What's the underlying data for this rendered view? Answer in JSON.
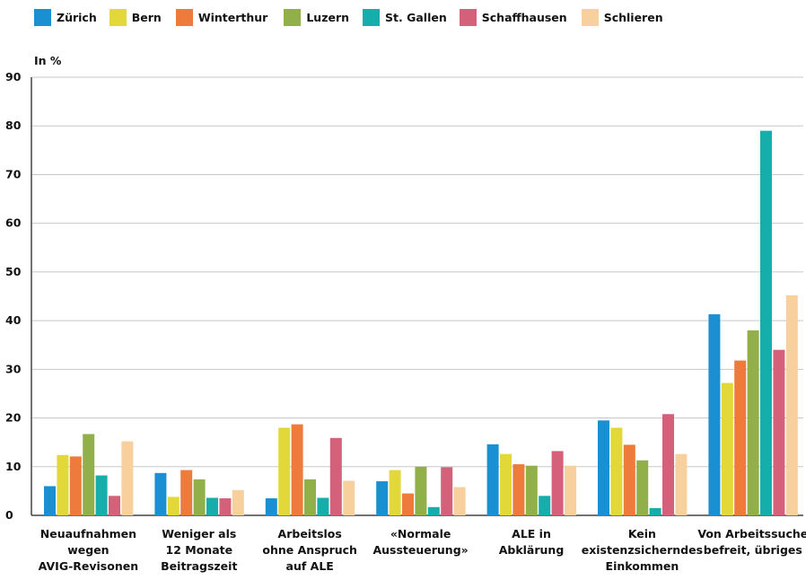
{
  "chart_data": {
    "type": "bar",
    "ylabel": "In %",
    "ylim": [
      0,
      90
    ],
    "yticks": [
      0,
      10,
      20,
      30,
      40,
      50,
      60,
      70,
      80,
      90
    ],
    "grid": true,
    "legend_position": "top-left",
    "categories": [
      [
        "Neuaufnahmen",
        "wegen",
        "AVIG-Revisonen"
      ],
      [
        "Weniger als",
        "12 Monate",
        "Beitragszeit"
      ],
      [
        "Arbeitslos",
        "ohne Anspruch",
        "auf ALE"
      ],
      [
        "«Normale",
        "Aussteuerung»"
      ],
      [
        "ALE in",
        "Abklärung"
      ],
      [
        "Kein",
        "existenzsicherndes",
        "Einkommen"
      ],
      [
        "Von Arbeitssuche",
        "befreit, übriges"
      ]
    ],
    "series": [
      {
        "name": "Zürich",
        "color": "#1a8fd1",
        "values": [
          6,
          8.7,
          3.5,
          7,
          14.6,
          19.5,
          41.3
        ]
      },
      {
        "name": "Bern",
        "color": "#e3d83a",
        "values": [
          12.4,
          3.8,
          18,
          9.3,
          12.6,
          18,
          27.2
        ]
      },
      {
        "name": "Winterthur",
        "color": "#ee7a3b",
        "values": [
          12.1,
          9.3,
          18.7,
          4.5,
          10.5,
          14.5,
          31.8
        ]
      },
      {
        "name": "Luzern",
        "color": "#92b04a",
        "values": [
          16.7,
          7.4,
          7.4,
          10,
          10.2,
          11.3,
          38
        ]
      },
      {
        "name": "St. Gallen",
        "color": "#15aeaa",
        "values": [
          8.2,
          3.6,
          3.6,
          1.7,
          4,
          1.5,
          79
        ]
      },
      {
        "name": "Schaffhausen",
        "color": "#d5607a",
        "values": [
          4,
          3.5,
          15.9,
          9.9,
          13.2,
          20.8,
          34
        ]
      },
      {
        "name": "Schlieren",
        "color": "#f7d09d",
        "values": [
          15.2,
          5.2,
          7.1,
          5.8,
          10.2,
          12.6,
          45.2
        ]
      }
    ]
  }
}
